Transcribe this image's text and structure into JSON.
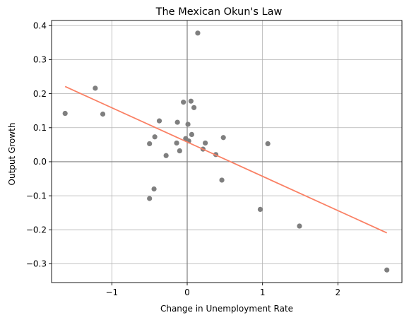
{
  "chart_data": {
    "type": "scatter",
    "title": "The Mexican Okun's Law",
    "xlabel": "Change in Unemployment Rate",
    "ylabel": "Output Growth",
    "xlim": [
      -1.8,
      2.85
    ],
    "ylim": [
      -0.355,
      0.415
    ],
    "xticks": [
      -1,
      0,
      1,
      2
    ],
    "xtick_labels": [
      "−1",
      "0",
      "1",
      "2"
    ],
    "yticks": [
      -0.3,
      -0.2,
      -0.1,
      0.0,
      0.1,
      0.2,
      0.3,
      0.4
    ],
    "ytick_labels": [
      "−0.3",
      "−0.2",
      "−0.1",
      "0.0",
      "0.1",
      "0.2",
      "0.3",
      "0.4"
    ],
    "grid": true,
    "points": [
      {
        "x": -1.62,
        "y": 0.142
      },
      {
        "x": -1.22,
        "y": 0.216
      },
      {
        "x": -1.12,
        "y": 0.14
      },
      {
        "x": -0.5,
        "y": 0.053
      },
      {
        "x": -0.43,
        "y": 0.073
      },
      {
        "x": -0.37,
        "y": 0.12
      },
      {
        "x": -0.5,
        "y": -0.108
      },
      {
        "x": -0.44,
        "y": -0.08
      },
      {
        "x": -0.28,
        "y": 0.018
      },
      {
        "x": -0.13,
        "y": 0.116
      },
      {
        "x": -0.14,
        "y": 0.055
      },
      {
        "x": -0.1,
        "y": 0.032
      },
      {
        "x": -0.05,
        "y": 0.175
      },
      {
        "x": -0.02,
        "y": 0.068
      },
      {
        "x": 0.01,
        "y": 0.11
      },
      {
        "x": 0.02,
        "y": 0.061
      },
      {
        "x": 0.05,
        "y": 0.178
      },
      {
        "x": 0.06,
        "y": 0.08
      },
      {
        "x": 0.09,
        "y": 0.159
      },
      {
        "x": 0.14,
        "y": 0.378
      },
      {
        "x": 0.21,
        "y": 0.037
      },
      {
        "x": 0.24,
        "y": 0.055
      },
      {
        "x": 0.38,
        "y": 0.021
      },
      {
        "x": 0.46,
        "y": -0.054
      },
      {
        "x": 0.48,
        "y": 0.071
      },
      {
        "x": 0.97,
        "y": -0.14
      },
      {
        "x": 1.07,
        "y": 0.053
      },
      {
        "x": 1.49,
        "y": -0.189
      },
      {
        "x": 2.65,
        "y": -0.318
      }
    ],
    "fit_line": {
      "x": [
        -1.62,
        2.65
      ],
      "y": [
        0.221,
        -0.209
      ]
    },
    "colors": {
      "points": "#7f7f7f",
      "fit_line": "#fa8064",
      "zero_lines": "#7f7f7f",
      "grid": "#b0b0b0"
    }
  }
}
